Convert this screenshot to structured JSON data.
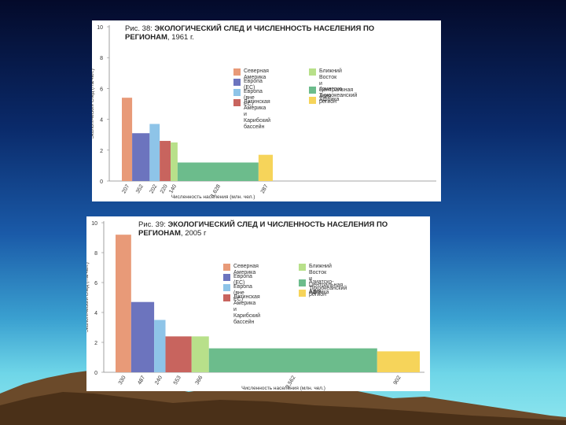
{
  "legend": {
    "north_america": "Северная Америка",
    "europe_eu": "Европа (ЕС)",
    "europe_non_eu": "Европа (вне ЕС)",
    "latin_america": "Латинская Америка\nи Карибский бассейн",
    "middle_east": "Ближний Восток\nи Центральная Азия",
    "asia_pacific": "Азиатско-Тихоокеанский регион",
    "africa": "Африка"
  },
  "colors": {
    "north_america": "#e89a78",
    "europe_eu": "#6c74be",
    "europe_non_eu": "#8ec4e8",
    "latin_america": "#c8645e",
    "middle_east": "#b8e08a",
    "asia_pacific": "#6cbc8c",
    "africa": "#f6d45a"
  },
  "chart_data": [
    {
      "type": "bar",
      "title_prefix": "Рис. 38:",
      "title": "ЭКОЛОГИЧЕСКИЙ СЛЕД И ЧИСЛЕННОСТЬ НАСЕЛЕНИЯ ПО РЕГИОНАМ",
      "title_suffix": ", 1961 г.",
      "ylabel": "Экологический след (гга/чел.)",
      "xlabel": "Численность населения (млн. чел.)",
      "ylim": [
        0,
        10
      ],
      "yticks": [
        "0",
        "2",
        "4",
        "6",
        "8",
        "10"
      ],
      "bars": [
        {
          "region": "north_america",
          "population": 207,
          "population_label": "207",
          "value": 5.4
        },
        {
          "region": "europe_eu",
          "population": 352,
          "population_label": "352",
          "value": 3.1
        },
        {
          "region": "europe_non_eu",
          "population": 202,
          "population_label": "202",
          "value": 3.7
        },
        {
          "region": "latin_america",
          "population": 220,
          "population_label": "220",
          "value": 2.6
        },
        {
          "region": "middle_east",
          "population": 140,
          "population_label": "140",
          "value": 2.5
        },
        {
          "region": "asia_pacific",
          "population": 1628,
          "population_label": "1,628",
          "value": 1.2
        },
        {
          "region": "africa",
          "population": 287,
          "population_label": "287",
          "value": 1.7
        }
      ]
    },
    {
      "type": "bar",
      "title_prefix": "Рис. 39:",
      "title": "ЭКОЛОГИЧЕСКИЙ СЛЕД И ЧИСЛЕННОСТЬ НАСЕЛЕНИЯ ПО РЕГИОНАМ",
      "title_suffix": ", 2005 г",
      "ylabel": "Экологический след (гга/чел.)",
      "xlabel": "Численность населения (млн. чел.)",
      "ylim": [
        0,
        10
      ],
      "yticks": [
        "0",
        "2",
        "4",
        "6",
        "8",
        "10"
      ],
      "bars": [
        {
          "region": "north_america",
          "population": 330,
          "population_label": "330",
          "value": 9.2
        },
        {
          "region": "europe_eu",
          "population": 487,
          "population_label": "487",
          "value": 4.7
        },
        {
          "region": "europe_non_eu",
          "population": 240,
          "population_label": "240",
          "value": 3.5
        },
        {
          "region": "latin_america",
          "population": 553,
          "population_label": "553",
          "value": 2.4
        },
        {
          "region": "middle_east",
          "population": 366,
          "population_label": "366",
          "value": 2.4
        },
        {
          "region": "asia_pacific",
          "population": 3562,
          "population_label": "3,562",
          "value": 1.6
        },
        {
          "region": "africa",
          "population": 902,
          "population_label": "902",
          "value": 1.4
        }
      ]
    }
  ]
}
